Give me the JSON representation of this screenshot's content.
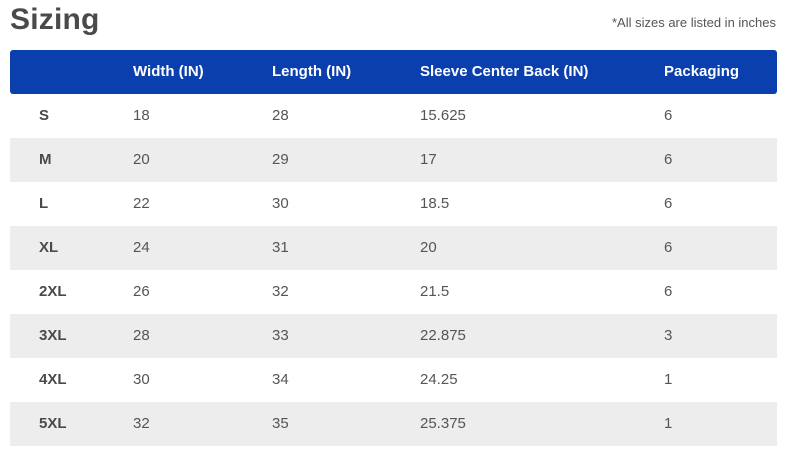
{
  "title": "Sizing",
  "note": "*All sizes are listed in inches",
  "colors": {
    "header_bg": "#0b3fae",
    "alt_row_bg": "#ededed",
    "text": "#555555"
  },
  "table": {
    "headers": [
      "",
      "Width (IN)",
      "Length (IN)",
      "Sleeve Center Back (IN)",
      "Packaging"
    ],
    "rows": [
      [
        "S",
        "18",
        "28",
        "15.625",
        "6"
      ],
      [
        "M",
        "20",
        "29",
        "17",
        "6"
      ],
      [
        "L",
        "22",
        "30",
        "18.5",
        "6"
      ],
      [
        "XL",
        "24",
        "31",
        "20",
        "6"
      ],
      [
        "2XL",
        "26",
        "32",
        "21.5",
        "6"
      ],
      [
        "3XL",
        "28",
        "33",
        "22.875",
        "3"
      ],
      [
        "4XL",
        "30",
        "34",
        "24.25",
        "1"
      ],
      [
        "5XL",
        "32",
        "35",
        "25.375",
        "1"
      ]
    ]
  }
}
